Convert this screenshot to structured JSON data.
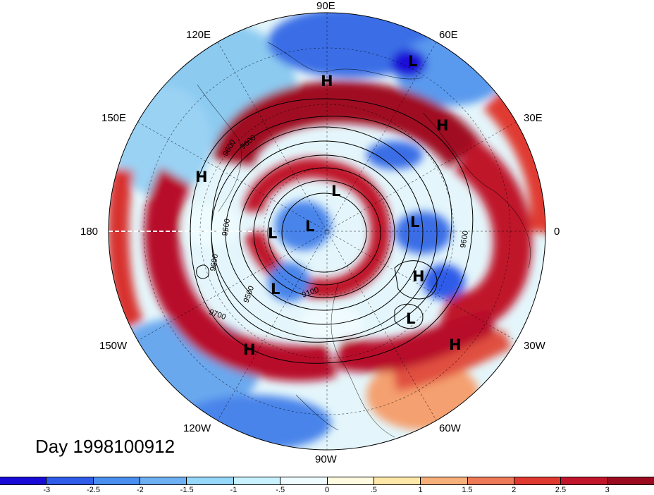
{
  "map": {
    "projection": "north-polar-stereographic",
    "longitude_labels": [
      "90E",
      "60E",
      "30E",
      "0",
      "30W",
      "60W",
      "90W",
      "120W",
      "150W",
      "180",
      "150E",
      "120E"
    ],
    "contour_labels": [
      "9600",
      "9600",
      "9600",
      "9600",
      "9500",
      "9100",
      "9700",
      "9600"
    ],
    "pressure_centers": [
      {
        "type": "H",
        "label": "H"
      },
      {
        "type": "L",
        "label": "L"
      },
      {
        "type": "H",
        "label": "H"
      },
      {
        "type": "H",
        "label": "H"
      },
      {
        "type": "L",
        "label": "L"
      },
      {
        "type": "L",
        "label": "L"
      },
      {
        "type": "L",
        "label": "L"
      },
      {
        "type": "L",
        "label": "L"
      },
      {
        "type": "H",
        "label": "H"
      },
      {
        "type": "L",
        "label": "L"
      },
      {
        "type": "L",
        "label": "L"
      },
      {
        "type": "H",
        "label": "H"
      },
      {
        "type": "H",
        "label": "H"
      }
    ],
    "date_label": "Day 1998100912"
  },
  "colorbar": {
    "colors": [
      "#1a0ad8",
      "#2f5ce8",
      "#4a8ef0",
      "#6eb0f4",
      "#96d8fa",
      "#c8f2ff",
      "#eefcff",
      "#fffbe0",
      "#ffe9a8",
      "#f8b07a",
      "#ee7a58",
      "#e03a30",
      "#c0152a",
      "#9c0a20"
    ],
    "tick_labels": [
      "-3",
      "-2.5",
      "-2",
      "-1.5",
      "-1",
      "-.5",
      "0",
      ".5",
      "1",
      "1.5",
      "2",
      "2.5",
      "3"
    ]
  }
}
